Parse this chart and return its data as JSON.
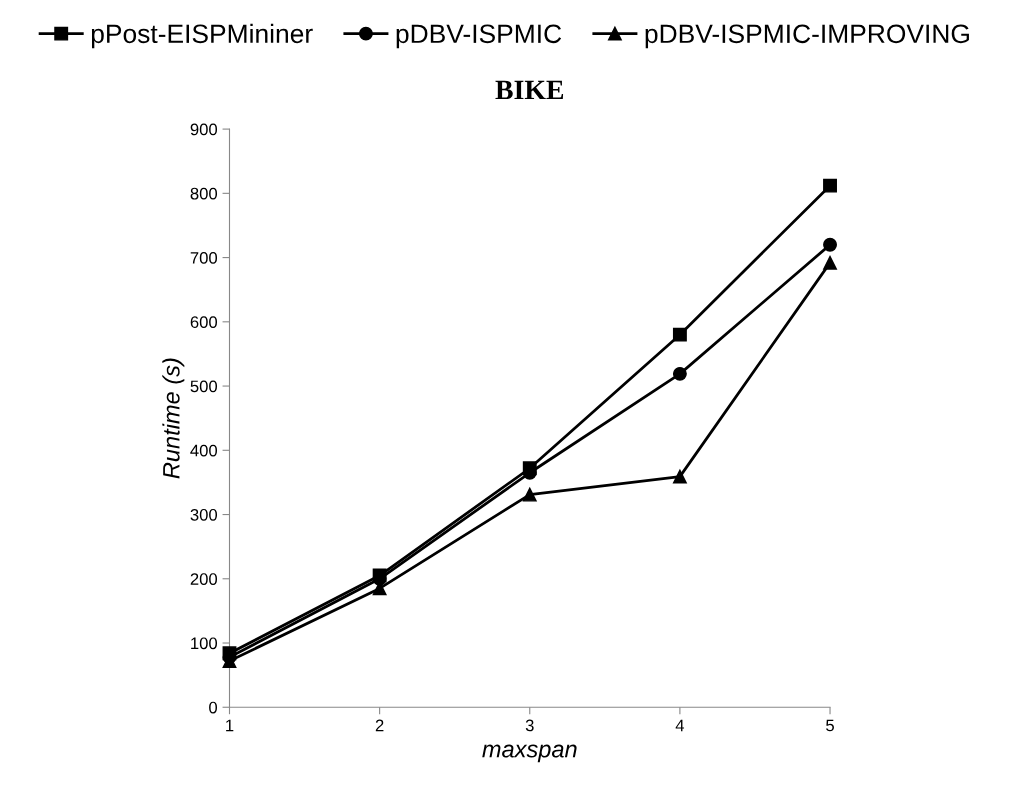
{
  "chart_data": {
    "type": "line",
    "title": "BIKE",
    "xlabel": "maxspan",
    "ylabel": "Runtime (s)",
    "x": [
      1,
      2,
      3,
      4,
      5
    ],
    "xlim": [
      1,
      5
    ],
    "xticks": [
      1,
      2,
      3,
      4,
      5
    ],
    "ylim": [
      0,
      900
    ],
    "yticks": [
      0,
      100,
      200,
      300,
      400,
      500,
      600,
      700,
      800,
      900
    ],
    "grid": false,
    "legend": "top",
    "line_style": "solid",
    "series": [
      {
        "name": "pPost-EISPMininer",
        "color": "#000000",
        "marker": "square",
        "values": [
          84,
          205,
          372,
          580,
          812
        ]
      },
      {
        "name": "pDBV-ISPMIC",
        "color": "#000000",
        "marker": "circle",
        "values": [
          78,
          200,
          365,
          519,
          720
        ]
      },
      {
        "name": "pDBV-ISPMIC-IMPROVING",
        "color": "#000000",
        "marker": "triangle",
        "values": [
          72,
          185,
          331,
          359,
          692
        ]
      }
    ]
  }
}
